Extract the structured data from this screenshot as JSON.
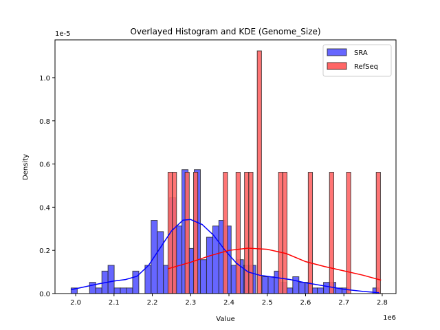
{
  "chart_data": {
    "type": "histogram+kde",
    "title": "Overlayed Histogram and KDE (Genome_Size)",
    "xlabel": "Value",
    "ylabel": "Density",
    "x_offset_label": "1e6",
    "y_offset_label": "1e-5",
    "xlim": [
      1.946,
      2.836
    ],
    "ylim": [
      0,
      1.175
    ],
    "xticks": [
      "2.0",
      "2.1",
      "2.2",
      "2.3",
      "2.4",
      "2.5",
      "2.6",
      "2.7",
      "2.8"
    ],
    "yticks": [
      "0.0",
      "0.2",
      "0.4",
      "0.6",
      "0.8",
      "1.0"
    ],
    "grid": false,
    "legend_position": "top-right",
    "series": [
      {
        "name": "SRA",
        "color": "#0000ff",
        "bar_color": "#6666ff",
        "bin_start": 1.988,
        "bin_width": 0.01607,
        "densities": [
          0.026,
          0,
          0,
          0.052,
          0.026,
          0.104,
          0.131,
          0.026,
          0.026,
          0.026,
          0.104,
          0,
          0.131,
          0.339,
          0.287,
          0.131,
          0.444,
          0.313,
          0.574,
          0.209,
          0.574,
          0.157,
          0.261,
          0.313,
          0.339,
          0.313,
          0.131,
          0.157,
          0.131,
          0.131,
          0,
          0.078,
          0.078,
          0.104,
          0.052,
          0.026,
          0.078,
          0.052,
          0.052,
          0.026,
          0.026,
          0.052,
          0.052,
          0.026,
          0.026,
          0,
          0,
          0,
          0,
          0.026
        ],
        "kde": [
          [
            1.988,
            0.018
          ],
          [
            2.02,
            0.03
          ],
          [
            2.06,
            0.045
          ],
          [
            2.1,
            0.058
          ],
          [
            2.13,
            0.065
          ],
          [
            2.16,
            0.08
          ],
          [
            2.19,
            0.13
          ],
          [
            2.22,
            0.21
          ],
          [
            2.25,
            0.29
          ],
          [
            2.28,
            0.34
          ],
          [
            2.3,
            0.343
          ],
          [
            2.33,
            0.32
          ],
          [
            2.36,
            0.27
          ],
          [
            2.39,
            0.2
          ],
          [
            2.42,
            0.14
          ],
          [
            2.45,
            0.1
          ],
          [
            2.48,
            0.085
          ],
          [
            2.52,
            0.075
          ],
          [
            2.56,
            0.065
          ],
          [
            2.6,
            0.05
          ],
          [
            2.65,
            0.035
          ],
          [
            2.7,
            0.02
          ],
          [
            2.75,
            0.01
          ],
          [
            2.792,
            0.004
          ]
        ]
      },
      {
        "name": "RefSeq",
        "color": "#ff0000",
        "bar_color": "#ff6666",
        "bin_start": 2.241,
        "bin_width": 0.01109,
        "densities": [
          0.562,
          0.562,
          0,
          0,
          0.562,
          0,
          0.562,
          0,
          0,
          0,
          0,
          0,
          0,
          0.562,
          0,
          0,
          0.562,
          0,
          0.562,
          0.562,
          0,
          1.124,
          0,
          0,
          0,
          0,
          0.562,
          0.562,
          0,
          0,
          0,
          0,
          0,
          0.562,
          0,
          0,
          0,
          0,
          0.562,
          0,
          0,
          0,
          0.562,
          0,
          0,
          0,
          0,
          0,
          0,
          0.562
        ],
        "kde": [
          [
            2.241,
            0.115
          ],
          [
            2.3,
            0.145
          ],
          [
            2.35,
            0.175
          ],
          [
            2.4,
            0.2
          ],
          [
            2.45,
            0.21
          ],
          [
            2.5,
            0.205
          ],
          [
            2.55,
            0.185
          ],
          [
            2.6,
            0.148
          ],
          [
            2.65,
            0.125
          ],
          [
            2.7,
            0.105
          ],
          [
            2.75,
            0.085
          ],
          [
            2.797,
            0.062
          ]
        ]
      }
    ]
  }
}
